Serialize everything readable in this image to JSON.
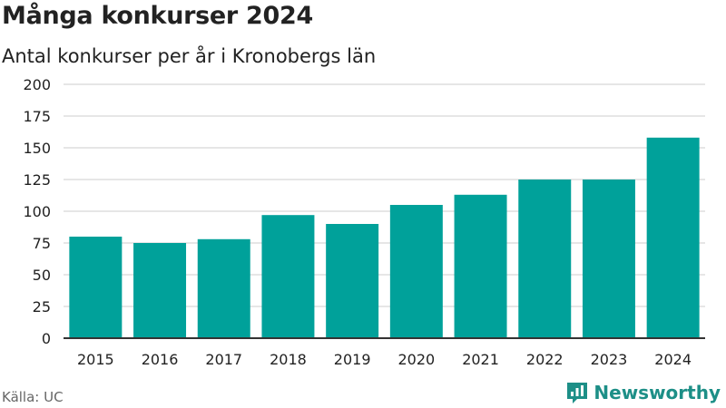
{
  "header": {
    "title": "Många konkurser 2024",
    "subtitle": "Antal konkurser per år i Kronobergs län"
  },
  "footer": {
    "source": "Källa: UC",
    "brand": "Newsworthy",
    "brand_icon": "bar-chart-icon"
  },
  "colors": {
    "bar": "#00a19a",
    "grid": "#dddddd",
    "axis": "#333333",
    "brand": "#1d8f87"
  },
  "chart_data": {
    "type": "bar",
    "title": "Många konkurser 2024",
    "subtitle": "Antal konkurser per år i Kronobergs län",
    "categories": [
      "2015",
      "2016",
      "2017",
      "2018",
      "2019",
      "2020",
      "2021",
      "2022",
      "2023",
      "2024"
    ],
    "values": [
      80,
      75,
      78,
      97,
      90,
      105,
      113,
      125,
      125,
      158
    ],
    "ylim": [
      0,
      200
    ],
    "yticks": [
      0,
      25,
      50,
      75,
      100,
      125,
      150,
      175,
      200
    ],
    "xlabel": "",
    "ylabel": "",
    "grid": true,
    "legend": "none"
  }
}
